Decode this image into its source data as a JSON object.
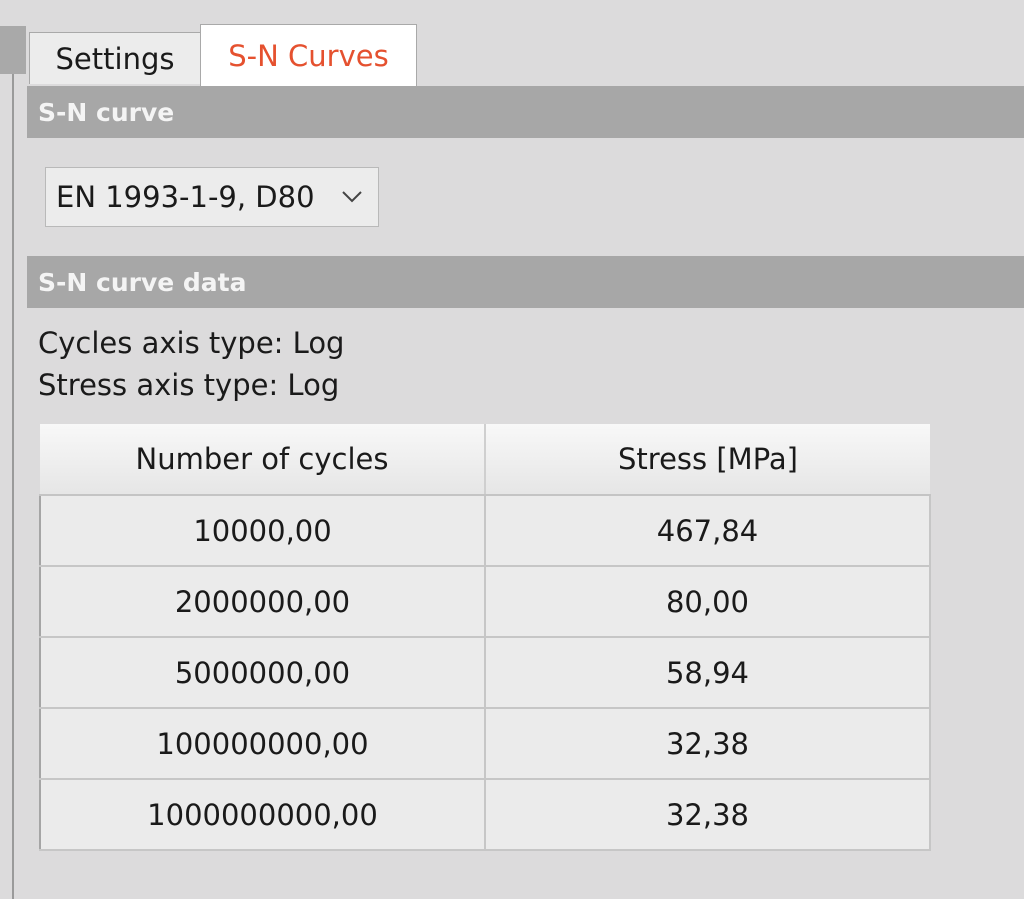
{
  "tabs": [
    {
      "label": "Settings",
      "active": false
    },
    {
      "label": "S-N Curves",
      "active": true
    }
  ],
  "sections": {
    "sn_curve": {
      "title": "S-N curve"
    },
    "sn_curve_data": {
      "title": "S-N curve data"
    }
  },
  "curve_select": {
    "value": "EN 1993-1-9, D80",
    "icon": "chevron-down-icon"
  },
  "axis_info": {
    "cycles": "Cycles axis type: Log",
    "stress": "Stress axis type: Log"
  },
  "table": {
    "headers": [
      "Number of cycles",
      "Stress [MPa]"
    ],
    "rows": [
      [
        "10000,00",
        "467,84"
      ],
      [
        "2000000,00",
        "80,00"
      ],
      [
        "5000000,00",
        "58,94"
      ],
      [
        "100000000,00",
        "32,38"
      ],
      [
        "1000000000,00",
        "32,38"
      ]
    ]
  },
  "colors": {
    "active_tab_text": "#e5512f",
    "section_header_bg": "#a7a7a7",
    "panel_bg": "#dcdbdc"
  }
}
